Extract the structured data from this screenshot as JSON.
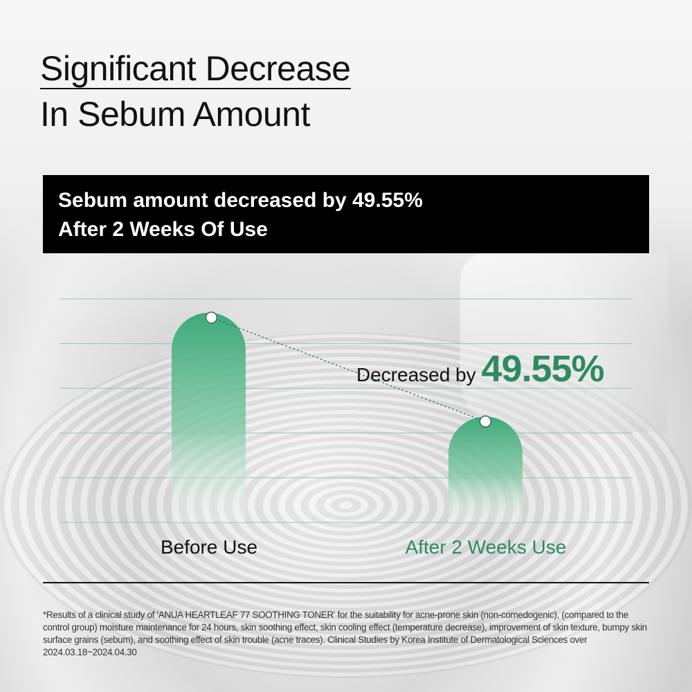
{
  "title": {
    "line1": "Significant Decrease",
    "line2": "In Sebum Amount"
  },
  "banner": {
    "line1": "Sebum amount decreased by 49.55%",
    "line2": "After 2 Weeks Of Use"
  },
  "callout": {
    "prefix": "Decreased by",
    "value": "49.55%"
  },
  "colors": {
    "accent": "#2e8a5f",
    "bar": "#3daa7a",
    "banner_bg": "#000000"
  },
  "chart_data": {
    "type": "bar",
    "categories": [
      "Before Use",
      "After 2 Weeks Use"
    ],
    "values": [
      100,
      50.45
    ],
    "unit": "relative sebum amount (%)",
    "ylim": [
      0,
      100
    ],
    "grid": true,
    "annotation": "Decreased by 49.55%"
  },
  "footnote": "*Results of a clinical study of 'ANUA HEARTLEAF 77 SOOTHING TONER' for the suitability for acne-prone skin (non-comedogenic), (compared to the control group) moisture maintenance for 24 hours, skin soothing effect, skin cooling effect (temperature decrease), improvement of skin texture, bumpy skin surface grains (sebum), and soothing effect of skin trouble (acne traces). Clinical Studies by Korea Institute of Dermatological Sciences over 2024.03.18~2024.04.30"
}
